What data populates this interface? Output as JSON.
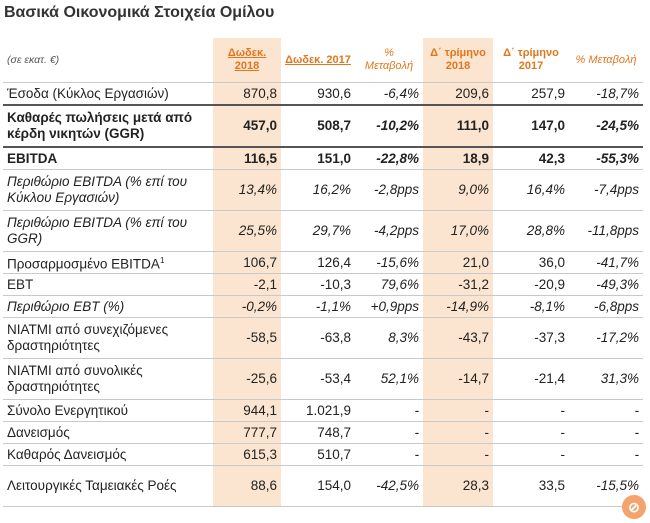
{
  "title": "Βασικά Οικονομικά Στοιχεία Ομίλου",
  "header": {
    "unit": "(σε εκατ. €)",
    "col1": "Δωδεκ. 2018",
    "col2": "Δωδεκ. 2017",
    "col3": "% Μεταβολή",
    "col4": "Δ΄ τρίμηνο 2018",
    "col5": "Δ΄ τρίμηνο 2017",
    "col6": "% Μεταβολή"
  },
  "rows": [
    {
      "label": "Έσοδα (Κύκλος Εργασιών)",
      "v1": "870,8",
      "v2": "930,6",
      "v3": "-6,4%",
      "v4": "209,6",
      "v5": "257,9",
      "v6": "-18,7%"
    },
    {
      "label": "Καθαρές πωλήσεις μετά από κέρδη νικητών (GGR)",
      "v1": "457,0",
      "v2": "508,7",
      "v3": "-10,2%",
      "v4": "111,0",
      "v5": "147,0",
      "v6": "-24,5%"
    },
    {
      "label": "EBITDA",
      "v1": "116,5",
      "v2": "151,0",
      "v3": "-22,8%",
      "v4": "18,9",
      "v5": "42,3",
      "v6": "-55,3%"
    },
    {
      "label": "Περιθώριο EBITDA (% επί του Κύκλου Εργασιών)",
      "v1": "13,4%",
      "v2": "16,2%",
      "v3": "-2,8pps",
      "v4": "9,0%",
      "v5": "16,4%",
      "v6": "-7,4pps"
    },
    {
      "label": "Περιθώριο EBITDA (% επί του GGR)",
      "v1": "25,5%",
      "v2": "29,7%",
      "v3": "-4,2pps",
      "v4": "17,0%",
      "v5": "28,8%",
      "v6": "-11,8pps"
    },
    {
      "label": "Προσαρμοσμένο EBITDA",
      "sup": "1",
      "v1": "106,7",
      "v2": "126,4",
      "v3": "-15,6%",
      "v4": "21,0",
      "v5": "36,0",
      "v6": "-41,7%"
    },
    {
      "label": "EBT",
      "v1": "-2,1",
      "v2": "-10,3",
      "v3": "79,6%",
      "v4": "-31,2",
      "v5": "-20,9",
      "v6": "-49,3%"
    },
    {
      "label": "Περιθώριο EBT (%)",
      "v1": "-0,2%",
      "v2": "-1,1%",
      "v3": "+0,9pps",
      "v4": "-14,9%",
      "v5": "-8,1%",
      "v6": "-6,8pps"
    },
    {
      "label": "ΝΙΑΤΜΙ από συνεχιζόμενες δραστηριότητες",
      "v1": "-58,5",
      "v2": "-63,8",
      "v3": "8,3%",
      "v4": "-43,7",
      "v5": "-37,3",
      "v6": "-17,2%"
    },
    {
      "label": "ΝΙΑΤΜΙ από συνολικές δραστηριότητες",
      "v1": "-25,6",
      "v2": "-53,4",
      "v3": "52,1%",
      "v4": "-14,7",
      "v5": "-21,4",
      "v6": "31,3%"
    },
    {
      "label": "Σύνολο Ενεργητικού",
      "v1": "944,1",
      "v2": "1.021,9",
      "v3": "-",
      "v4": "-",
      "v5": "-",
      "v6": "-"
    },
    {
      "label": "Δανεισμός",
      "v1": "777,7",
      "v2": "748,7",
      "v3": "-",
      "v4": "-",
      "v5": "-",
      "v6": "-"
    },
    {
      "label": "Καθαρός Δανεισμός",
      "v1": "615,3",
      "v2": "510,7",
      "v3": "-",
      "v4": "-",
      "v5": "-",
      "v6": "-"
    },
    {
      "label": "Λειτουργικές Ταμειακές Ροές",
      "v1": "88,6",
      "v2": "154,0",
      "v3": "-42,5%",
      "v4": "28,3",
      "v5": "33,5",
      "v6": "-15,5%"
    }
  ],
  "badge": "⊘"
}
